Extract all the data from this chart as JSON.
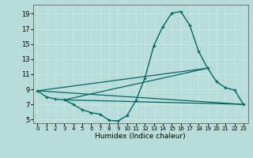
{
  "xlabel": "Humidex (Indice chaleur)",
  "bg_color": "#b8ddd8",
  "grid_color": "#c8e8e0",
  "line_color": "#006666",
  "xlim": [
    -0.5,
    23.5
  ],
  "ylim": [
    4.5,
    20.2
  ],
  "xticks": [
    0,
    1,
    2,
    3,
    4,
    5,
    6,
    7,
    8,
    9,
    10,
    11,
    12,
    13,
    14,
    15,
    16,
    17,
    18,
    19,
    20,
    21,
    22,
    23
  ],
  "yticks": [
    5,
    7,
    9,
    11,
    13,
    15,
    17,
    19
  ],
  "line_series": [
    {
      "x": [
        0,
        1,
        2,
        3,
        4,
        5,
        6,
        7,
        8,
        9,
        10,
        11,
        12,
        13,
        14,
        15,
        16,
        17,
        18,
        19,
        20,
        21,
        22,
        23
      ],
      "y": [
        8.8,
        8.0,
        7.7,
        7.6,
        7.0,
        6.3,
        5.9,
        5.7,
        4.9,
        4.8,
        5.5,
        7.5,
        10.5,
        14.8,
        17.3,
        19.1,
        19.3,
        17.5,
        14.0,
        11.8,
        10.0,
        9.2,
        8.9,
        7.0
      ],
      "marker": true
    },
    {
      "comment": "trend line from x=0,y=8.8 to x=23,y=7.0",
      "x": [
        0,
        23
      ],
      "y": [
        8.8,
        7.0
      ],
      "marker": false
    },
    {
      "comment": "trend line from x=3,y=7.6 to x=23,y=7.0",
      "x": [
        3,
        23
      ],
      "y": [
        7.6,
        7.0
      ],
      "marker": false
    },
    {
      "comment": "trend line from x=3,y=7.6 to x=19,y=11.8",
      "x": [
        3,
        19
      ],
      "y": [
        7.6,
        11.8
      ],
      "marker": false
    },
    {
      "comment": "trend line from x=0,y=8.8 to x=19,y=11.8",
      "x": [
        0,
        19
      ],
      "y": [
        8.8,
        11.8
      ],
      "marker": false
    }
  ]
}
